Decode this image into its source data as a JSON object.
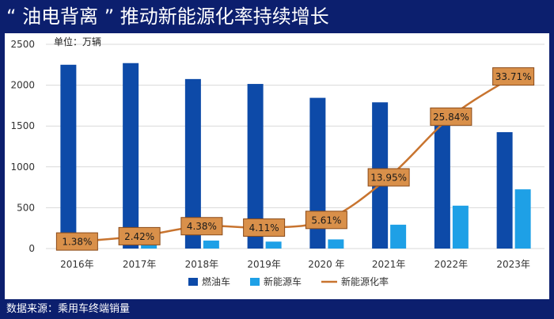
{
  "header": {
    "title": "“ 油电背离 ” 推动新能源化率持续增长"
  },
  "footer": {
    "source": "数据来源：乘用车终端销量"
  },
  "chart_data": {
    "type": "bar",
    "title": "“ 油电背离 ” 推动新能源化率持续增长",
    "unit_label": "单位：万辆",
    "categories": [
      "2016年",
      "2017年",
      "2018年",
      "2019年",
      "2020 年",
      "2021年",
      "2022年",
      "2023年"
    ],
    "series": [
      {
        "name": "燃油车",
        "type": "bar",
        "axis": "left",
        "color": "#0d4aa8",
        "values": [
          2250,
          2270,
          2075,
          2015,
          1845,
          1790,
          1505,
          1425
        ]
      },
      {
        "name": "新能源车",
        "type": "bar",
        "axis": "left",
        "color": "#1ea0e6",
        "values": [
          32,
          57,
          98,
          85,
          112,
          292,
          525,
          725
        ]
      },
      {
        "name": "新能源化率",
        "type": "line",
        "axis": "right",
        "color": "#c8742f",
        "values": [
          1.38,
          2.42,
          4.38,
          4.11,
          5.61,
          13.95,
          25.84,
          33.71
        ],
        "labels": [
          "1.38%",
          "2.42%",
          "4.38%",
          "4.11%",
          "5.61%",
          "13.95%",
          "25.84%",
          "33.71%"
        ]
      }
    ],
    "ylim": [
      0,
      2500
    ],
    "yticks": [
      0,
      500,
      1000,
      1500,
      2000,
      2500
    ],
    "ytick_labels": [
      "0",
      "500",
      "1000",
      "1500",
      "2000",
      "2500"
    ],
    "y2lim": [
      0,
      40
    ],
    "grid": true,
    "legend_position": "bottom-center",
    "label_box_color": "#d9904a"
  }
}
